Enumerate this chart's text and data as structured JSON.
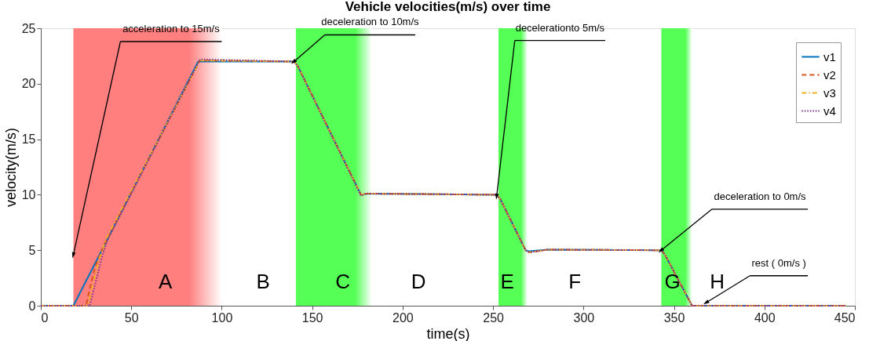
{
  "chart_data": {
    "type": "line",
    "title": "Vehicle velocities(m/s) over time",
    "xlabel": "time(s)",
    "ylabel": "velocity(m/s)",
    "xlim": [
      0,
      450
    ],
    "xticks": [
      0,
      50,
      100,
      150,
      200,
      250,
      300,
      350,
      400,
      450
    ],
    "ylim": [
      0,
      25
    ],
    "yticks": [
      0,
      5,
      10,
      15,
      20,
      25
    ],
    "grid": false,
    "legend": "top right",
    "series": [
      {
        "name": "v1",
        "color": "#0072bd",
        "line_style": "solid",
        "x": [
          0,
          18,
          35,
          87,
          140,
          142,
          177,
          180,
          252,
          254,
          268,
          270,
          280,
          343,
          345,
          360,
          445
        ],
        "values": [
          0,
          0,
          5.4,
          22,
          22,
          21.6,
          10,
          10.1,
          10,
          9.6,
          5,
          4.9,
          5.05,
          5,
          4.6,
          0,
          0
        ]
      },
      {
        "name": "v2",
        "color": "#d95319",
        "line_style": "dashed",
        "x": [
          0,
          25,
          27,
          30,
          35,
          88,
          140,
          142,
          177,
          180,
          252,
          254,
          268,
          270,
          280,
          343,
          345,
          360,
          445
        ],
        "values": [
          0,
          0,
          1.5,
          3.5,
          5.5,
          22.1,
          22,
          21.6,
          10,
          10.1,
          10,
          9.6,
          5,
          4.8,
          5.05,
          5,
          4.6,
          0,
          0
        ]
      },
      {
        "name": "v3",
        "color": "#edb120",
        "line_style": "dashdot",
        "x": [
          0,
          26,
          32,
          36,
          88,
          140,
          142,
          177,
          180,
          252,
          254,
          268,
          270,
          280,
          343,
          345,
          360,
          445
        ],
        "values": [
          0,
          0,
          4,
          6,
          22.1,
          22,
          21.6,
          10,
          10.1,
          10,
          9.6,
          5,
          4.8,
          5.05,
          5,
          4.6,
          0,
          0
        ]
      },
      {
        "name": "v4",
        "color": "#7e2f8e",
        "line_style": "dotted",
        "x": [
          0,
          27,
          34,
          37,
          88,
          140,
          142,
          177,
          180,
          252,
          254,
          268,
          270,
          280,
          343,
          345,
          360,
          445
        ],
        "values": [
          0,
          0,
          4.5,
          6,
          22.2,
          22,
          21.6,
          9.9,
          10.1,
          10,
          9.6,
          5,
          4.8,
          5.05,
          5,
          4.6,
          0,
          0
        ]
      }
    ],
    "bands": [
      {
        "axis": "x",
        "from": 18,
        "to": 100,
        "color": "#ff7f7f"
      },
      {
        "axis": "x",
        "from": 141,
        "to": 183,
        "color": "#55ff55"
      },
      {
        "axis": "x",
        "from": 253,
        "to": 269,
        "color": "#55ff55"
      },
      {
        "axis": "x",
        "from": 343,
        "to": 360,
        "color": "#55ff55"
      }
    ],
    "annotations": [
      {
        "text": "acceleration to 15m/s",
        "x": 18,
        "y": 4.6
      },
      {
        "text": "deceleration to 10m/s",
        "x": 140,
        "y": 22
      },
      {
        "text": "decelerationto 5m/s",
        "x": 252,
        "y": 9.9
      },
      {
        "text": "deceleration to 0m/s",
        "x": 343,
        "y": 5
      },
      {
        "text": "rest ( 0m/s )",
        "x": 368,
        "y": 0.3
      },
      "A",
      "B",
      "C",
      "D",
      "E",
      "F",
      "G",
      "H"
    ]
  }
}
